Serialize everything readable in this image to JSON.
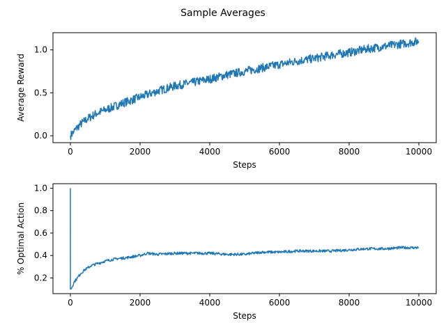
{
  "figure": {
    "title": "Sample Averages"
  },
  "chart_data": [
    {
      "type": "line",
      "title": "",
      "xlabel": "Steps",
      "ylabel": "Average Reward",
      "xlim": [
        -500,
        10500
      ],
      "ylim": [
        -0.08,
        1.2
      ],
      "xticks": [
        0,
        2000,
        4000,
        6000,
        8000,
        10000
      ],
      "xtick_labels": [
        "0",
        "2000",
        "4000",
        "6000",
        "8000",
        "10000"
      ],
      "yticks": [
        0.0,
        0.5,
        1.0
      ],
      "ytick_labels": [
        "0.0",
        "0.5",
        "1.0"
      ],
      "grid": false,
      "series": [
        {
          "name": "",
          "color": "#1f77b4",
          "band": 0.05,
          "x": [
            0,
            100,
            250,
            500,
            750,
            1000,
            1500,
            2000,
            2500,
            3000,
            3500,
            4000,
            4500,
            5000,
            5500,
            6000,
            6500,
            7000,
            7500,
            8000,
            8500,
            9000,
            9500,
            10000
          ],
          "y": [
            0.0,
            0.05,
            0.12,
            0.2,
            0.26,
            0.3,
            0.38,
            0.45,
            0.52,
            0.58,
            0.62,
            0.66,
            0.71,
            0.75,
            0.79,
            0.83,
            0.87,
            0.9,
            0.94,
            0.97,
            1.01,
            1.04,
            1.07,
            1.1
          ]
        }
      ]
    },
    {
      "type": "line",
      "title": "",
      "xlabel": "Steps",
      "ylabel": "% Optimal Action",
      "xlim": [
        -500,
        10500
      ],
      "ylim": [
        0.06,
        1.04
      ],
      "xticks": [
        0,
        2000,
        4000,
        6000,
        8000,
        10000
      ],
      "xtick_labels": [
        "0",
        "2000",
        "4000",
        "6000",
        "8000",
        "10000"
      ],
      "yticks": [
        0.2,
        0.4,
        0.6,
        0.8,
        1.0
      ],
      "ytick_labels": [
        "0.2",
        "0.4",
        "0.6",
        "0.8",
        "1.0"
      ],
      "grid": false,
      "series": [
        {
          "name": "",
          "color": "#1f77b4",
          "band": 0.012,
          "x": [
            0,
            1,
            10,
            50,
            100,
            200,
            300,
            400,
            500,
            600,
            800,
            1000,
            1300,
            1600,
            2000,
            2200,
            2500,
            3000,
            3500,
            4000,
            4500,
            5000,
            5500,
            6000,
            6500,
            7000,
            7500,
            8000,
            8500,
            9000,
            9500,
            10000
          ],
          "y": [
            1.0,
            0.1,
            0.1,
            0.12,
            0.16,
            0.2,
            0.24,
            0.27,
            0.29,
            0.31,
            0.33,
            0.35,
            0.37,
            0.38,
            0.4,
            0.42,
            0.41,
            0.42,
            0.42,
            0.42,
            0.41,
            0.41,
            0.43,
            0.43,
            0.44,
            0.44,
            0.44,
            0.45,
            0.46,
            0.46,
            0.47,
            0.47
          ]
        }
      ]
    }
  ]
}
